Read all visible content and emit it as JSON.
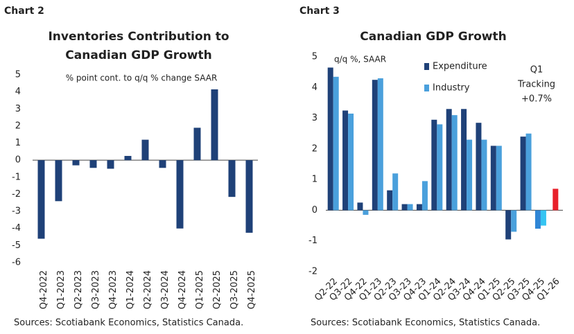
{
  "chart_data": [
    {
      "type": "bar",
      "label": "Chart 2",
      "title": [
        "Inventories Contribution to",
        "Canadian GDP Growth"
      ],
      "subtitle": "% point cont. to q/q % change SAAR",
      "source": "Sources: Scotiabank Economics, Statistics Canada.",
      "categories": [
        "Q4-2022",
        "Q1-2023",
        "Q2-2023",
        "Q3-2023",
        "Q4-2023",
        "Q1-2024",
        "Q2-2024",
        "Q3-2024",
        "Q4-2024",
        "Q1-2025",
        "Q2-2025",
        "Q3-2025",
        "Q4-2025"
      ],
      "series": [
        {
          "color": "#1f4178",
          "values": [
            -4.6,
            -2.4,
            -0.3,
            -0.45,
            -0.5,
            0.25,
            1.2,
            -0.45,
            -4.0,
            1.9,
            4.15,
            -2.15,
            -4.25
          ]
        }
      ],
      "ylim": [
        -6,
        5
      ],
      "yticks": [
        -6,
        -5,
        -4,
        -3,
        -2,
        -1,
        0,
        1,
        2,
        3,
        4,
        5
      ]
    },
    {
      "type": "bar",
      "label": "Chart 3",
      "title": "Canadian GDP Growth",
      "subtitle": "q/q %, SAAR",
      "source": "Sources: Scotiabank Economics, Statistics Canada.",
      "categories": [
        "Q2-22",
        "Q3-22",
        "Q4-22",
        "Q1-23",
        "Q2-23",
        "Q3-23",
        "Q4-23",
        "Q1-24",
        "Q2-24",
        "Q3-24",
        "Q4-24",
        "Q1-25",
        "Q2-25",
        "Q3-25",
        "Q4-25",
        "Q1-26"
      ],
      "series": [
        {
          "name": "Expenditure",
          "color": "#1f4178",
          "colors": [
            "#1f4178",
            "#1f4178",
            "#1f4178",
            "#1f4178",
            "#1f4178",
            "#1f4178",
            "#1f4178",
            "#1f4178",
            "#1f4178",
            "#1f4178",
            "#1f4178",
            "#1f4178",
            "#1f4178",
            "#1f4178",
            "#2f86d6",
            "#1f4178"
          ],
          "values": [
            4.65,
            3.25,
            0.25,
            4.25,
            0.65,
            0.2,
            0.2,
            2.95,
            3.3,
            3.3,
            2.85,
            2.1,
            -0.95,
            2.4,
            -0.6,
            null
          ]
        },
        {
          "name": "Industry",
          "color": "#4aa0dc",
          "colors": [
            "#4aa0dc",
            "#4aa0dc",
            "#4aa0dc",
            "#4aa0dc",
            "#4aa0dc",
            "#4aa0dc",
            "#4aa0dc",
            "#4aa0dc",
            "#4aa0dc",
            "#4aa0dc",
            "#4aa0dc",
            "#4aa0dc",
            "#4aa0dc",
            "#4aa0dc",
            "#35c4f2",
            "#4aa0dc"
          ],
          "values": [
            4.35,
            3.15,
            -0.15,
            4.3,
            1.2,
            0.2,
            0.95,
            2.8,
            3.1,
            2.3,
            2.3,
            2.1,
            -0.7,
            2.5,
            -0.5,
            null
          ]
        }
      ],
      "tracking": {
        "lines": [
          "Q1",
          "Tracking",
          "+0.7%"
        ],
        "value": 0.7,
        "color": "#e8202a"
      },
      "ylim": [
        -2,
        5
      ],
      "yticks": [
        -2,
        -1,
        0,
        1,
        2,
        3,
        4,
        5
      ]
    }
  ]
}
